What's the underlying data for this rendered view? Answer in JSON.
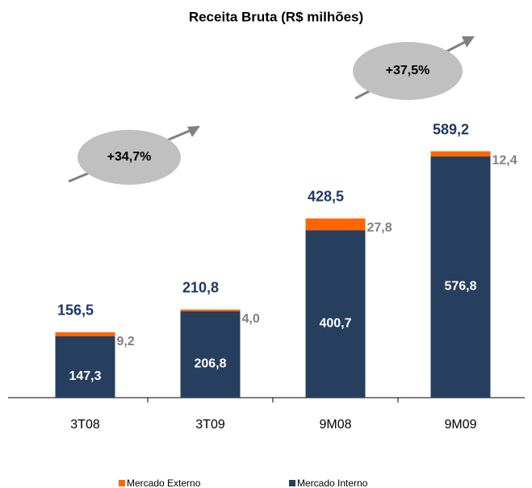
{
  "chart_data": {
    "type": "stacked_bar",
    "title": "Receita Bruta (R$ milhões)",
    "categories": [
      "3T08",
      "3T09",
      "9M08",
      "9M09"
    ],
    "series": [
      {
        "name": "Mercado Interno",
        "color": "#263f5e",
        "values": [
          147.3,
          206.8,
          400.7,
          576.8
        ],
        "value_labels": [
          "147,3",
          "206,8",
          "400,7",
          "576,8"
        ]
      },
      {
        "name": "Mercado Externo",
        "color": "#ff6600",
        "values": [
          9.2,
          4.0,
          27.8,
          12.4
        ],
        "value_labels": [
          "9,2",
          "4,0",
          "27,8",
          "12,4"
        ]
      }
    ],
    "totals": [
      156.5,
      210.8,
      428.5,
      589.2
    ],
    "total_labels": [
      "156,5",
      "210,8",
      "428,5",
      "589,2"
    ],
    "annotations": [
      "+34,7%",
      "+37,5%"
    ],
    "ylim": [
      0,
      650
    ]
  }
}
